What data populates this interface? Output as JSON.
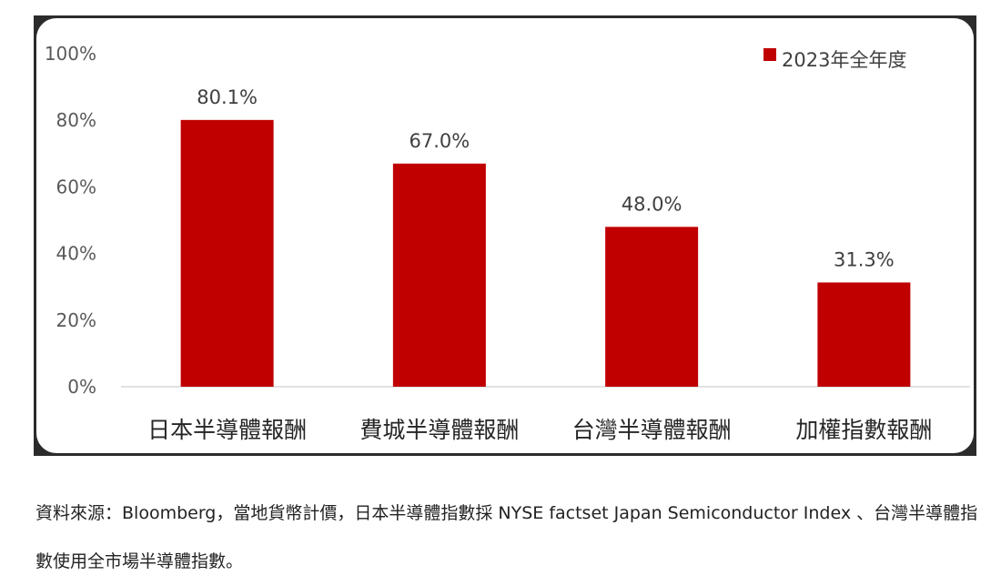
{
  "chart_data": {
    "type": "bar",
    "categories": [
      "日本半導體報酬",
      "費城半導體報酬",
      "台灣半導體報酬",
      "加權指數報酬"
    ],
    "series": [
      {
        "name": "2023年全年度",
        "values": [
          80.1,
          67.0,
          48.0,
          31.3
        ],
        "color": "#c00000"
      }
    ],
    "data_labels": [
      "80.1%",
      "67.0%",
      "48.0%",
      "31.3%"
    ],
    "y_ticks": [
      "0%",
      "20%",
      "40%",
      "60%",
      "80%",
      "100%"
    ],
    "ylim": [
      0,
      100
    ],
    "grid": false,
    "legend_position": "top-right"
  },
  "source_note": "資料來源：Bloomberg，當地貨幣計價，日本半導體指數採 NYSE factset Japan Semiconductor Index 、台灣半導體指數使用全市場半導體指數。"
}
